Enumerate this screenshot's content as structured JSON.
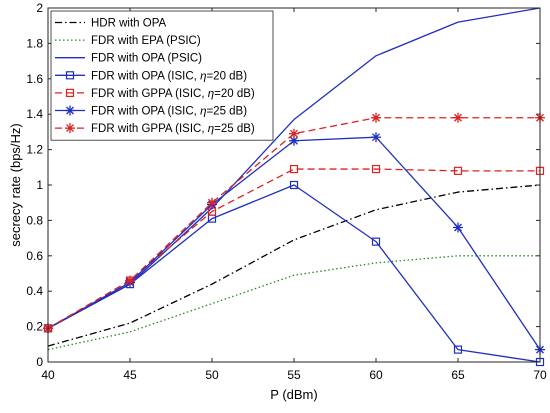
{
  "chart_data": {
    "type": "line",
    "xlabel": "P (dBm)",
    "ylabel": "secrecy rate (bps/Hz)",
    "x": [
      40,
      45,
      50,
      55,
      60,
      65,
      70
    ],
    "xlim": [
      40,
      70
    ],
    "ylim": [
      0,
      2
    ],
    "xticks": [
      "40",
      "45",
      "50",
      "55",
      "60",
      "65",
      "70"
    ],
    "yticks": [
      "0",
      "0.2",
      "0.4",
      "0.6",
      "0.8",
      "1",
      "1.2",
      "1.4",
      "1.6",
      "1.8",
      "2"
    ],
    "grid": false,
    "legend_position": "top-left",
    "series": [
      {
        "name": "HDR with OPA",
        "color": "#000000",
        "dash": "dash-dot",
        "marker": "none",
        "values": [
          0.09,
          0.22,
          0.44,
          0.69,
          0.86,
          0.96,
          1.0
        ]
      },
      {
        "name": "FDR with EPA (PSIC)",
        "color": "#228B22",
        "dash": "dotted",
        "marker": "none",
        "values": [
          0.07,
          0.17,
          0.33,
          0.49,
          0.56,
          0.6,
          0.6
        ]
      },
      {
        "name": "FDR with OPA (PSIC)",
        "color": "#1f2fbf",
        "dash": "solid",
        "marker": "none",
        "values": [
          0.19,
          0.44,
          0.87,
          1.37,
          1.73,
          1.92,
          2.0
        ]
      },
      {
        "name": "FDR with OPA (ISIC, η=20 dB)",
        "label_prefix": "FDR with OPA (ISIC, ",
        "label_var": "η",
        "label_suffix": "=20 dB)",
        "color": "#1f2fbf",
        "dash": "solid",
        "marker": "square",
        "values": [
          0.19,
          0.44,
          0.81,
          1.0,
          0.68,
          0.07,
          0.0
        ]
      },
      {
        "name": "FDR with GPPA (ISIC, η=20 dB)",
        "label_prefix": "FDR with GPPA (ISIC, ",
        "label_var": "η",
        "label_suffix": "=20 dB)",
        "color": "#dd2222",
        "dash": "dashed",
        "marker": "square",
        "values": [
          0.19,
          0.46,
          0.85,
          1.09,
          1.09,
          1.08,
          1.08
        ]
      },
      {
        "name": "FDR with OPA (ISIC, η=25 dB)",
        "label_prefix": "FDR with OPA (ISIC, ",
        "label_var": "η",
        "label_suffix": "=25 dB)",
        "color": "#1f2fbf",
        "dash": "solid",
        "marker": "asterisk",
        "values": [
          0.19,
          0.45,
          0.89,
          1.25,
          1.27,
          0.76,
          0.07
        ]
      },
      {
        "name": "FDR with GPPA (ISIC, η=25 dB)",
        "label_prefix": "FDR with GPPA (ISIC, ",
        "label_var": "η",
        "label_suffix": "=25 dB)",
        "color": "#dd2222",
        "dash": "dashed",
        "marker": "asterisk",
        "values": [
          0.19,
          0.46,
          0.9,
          1.29,
          1.38,
          1.38,
          1.38
        ]
      }
    ]
  }
}
